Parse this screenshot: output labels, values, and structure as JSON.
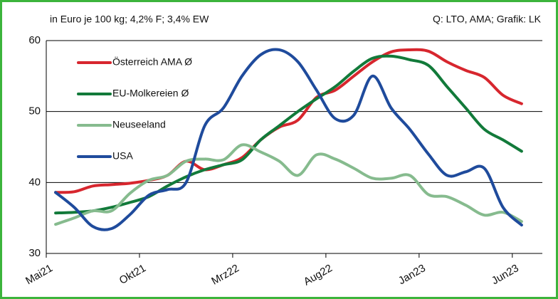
{
  "chart_data": {
    "type": "line",
    "subtitle": "in Euro je 100 kg; 4,2% F; 3,4% EW",
    "source": "Q: LTO, AMA; Grafik: LK",
    "categories": [
      "Mai21",
      null,
      null,
      null,
      null,
      "Okt21",
      null,
      null,
      null,
      null,
      "Mrz22",
      null,
      null,
      null,
      null,
      "Aug22",
      null,
      null,
      null,
      null,
      "Jan23",
      null,
      null,
      null,
      null,
      "Jun23"
    ],
    "series": [
      {
        "name": "Österreich AMA Ø",
        "color": "#d7262e",
        "values": [
          38.6,
          38.7,
          39.5,
          39.7,
          39.9,
          40.3,
          41.0,
          43.0,
          41.8,
          42.5,
          43.5,
          46.0,
          47.8,
          48.8,
          52.0,
          53.0,
          55.0,
          57.0,
          58.4,
          58.7,
          58.5,
          57.0,
          55.8,
          54.8,
          52.3,
          51.1
        ]
      },
      {
        "name": "EU-Molkereien Ø",
        "color": "#127a3a",
        "values": [
          35.7,
          35.8,
          36.0,
          36.5,
          37.2,
          38.0,
          39.5,
          40.8,
          41.8,
          42.5,
          43.2,
          46.0,
          48.0,
          50.0,
          51.8,
          53.5,
          55.7,
          57.5,
          57.8,
          57.3,
          56.5,
          53.5,
          50.5,
          47.5,
          46.0,
          44.4
        ]
      },
      {
        "name": "Neuseeland",
        "color": "#86bb8e",
        "values": [
          34.1,
          35.0,
          36.0,
          36.0,
          38.5,
          40.3,
          41.0,
          43.0,
          43.3,
          43.2,
          45.3,
          44.3,
          43.0,
          41.0,
          43.9,
          43.3,
          42.0,
          40.6,
          40.6,
          41.0,
          38.3,
          38.0,
          36.8,
          35.4,
          35.8,
          34.5
        ]
      },
      {
        "name": "USA",
        "color": "#1f4b9c",
        "values": [
          38.6,
          36.5,
          33.8,
          33.5,
          35.5,
          38.2,
          39.0,
          40.0,
          48.0,
          50.5,
          55.0,
          58.0,
          58.7,
          57.0,
          53.0,
          49.0,
          49.5,
          55.0,
          50.5,
          47.5,
          44.0,
          41.0,
          41.5,
          42.0,
          36.5,
          34.0
        ]
      }
    ],
    "ylim": [
      30,
      60
    ],
    "yticks": [
      30,
      40,
      50,
      60
    ],
    "grid": true,
    "legend": "upper left"
  }
}
